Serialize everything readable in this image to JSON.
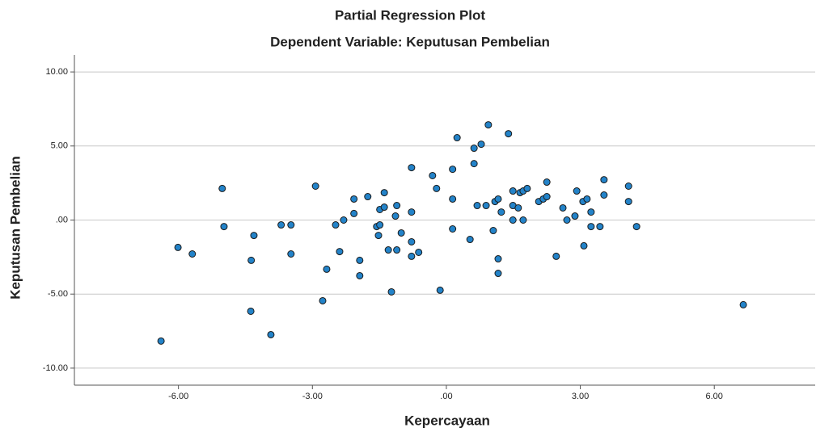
{
  "chart_data": {
    "type": "scatter",
    "title": "Partial Regression Plot",
    "subtitle": "Dependent Variable: Keputusan Pembelian",
    "x_label": "Kepercayaan",
    "y_label": "Keputusan Pembelian",
    "x": [
      -6.39,
      -6.01,
      -5.69,
      -5.02,
      -4.98,
      -4.38,
      -4.37,
      -4.31,
      -3.93,
      -3.7,
      -3.48,
      -3.48,
      -2.93,
      -2.77,
      -2.68,
      -2.48,
      -2.39,
      -2.3,
      -2.07,
      -2.07,
      -1.94,
      -1.94,
      -1.76,
      -1.56,
      -1.52,
      -1.49,
      -1.49,
      -1.39,
      -1.39,
      -1.3,
      -1.23,
      -1.14,
      -1.11,
      -1.11,
      -1.01,
      -0.78,
      -0.78,
      -0.78,
      -0.78,
      -0.62,
      -0.31,
      -0.22,
      -0.14,
      0.14,
      0.14,
      0.14,
      0.24,
      0.53,
      0.62,
      0.62,
      0.69,
      0.78,
      0.89,
      0.94,
      1.05,
      1.09,
      1.16,
      1.16,
      1.16,
      1.23,
      1.39,
      1.49,
      1.49,
      1.49,
      1.61,
      1.65,
      1.72,
      1.72,
      1.81,
      2.07,
      2.17,
      2.25,
      2.25,
      2.46,
      2.61,
      2.7,
      2.88,
      2.92,
      3.06,
      3.08,
      3.15,
      3.24,
      3.24,
      3.44,
      3.53,
      3.53,
      4.08,
      4.08,
      4.26,
      6.65
    ],
    "values": [
      -8.17,
      -1.85,
      -2.29,
      2.13,
      -0.44,
      -6.16,
      -2.72,
      -1.04,
      -7.74,
      -0.33,
      -0.33,
      -2.29,
      2.29,
      -5.45,
      -3.32,
      -0.33,
      -2.13,
      0.0,
      0.44,
      1.42,
      -2.72,
      -3.76,
      1.58,
      -0.44,
      -1.04,
      -0.33,
      0.71,
      0.87,
      1.85,
      -2.02,
      -4.85,
      0.27,
      0.98,
      -2.02,
      -0.87,
      3.54,
      0.54,
      -1.47,
      -2.45,
      -2.18,
      3.0,
      2.13,
      -4.74,
      3.43,
      1.42,
      -0.6,
      5.56,
      -1.31,
      4.85,
      3.81,
      0.98,
      5.12,
      0.98,
      6.43,
      -0.71,
      1.25,
      1.42,
      -2.62,
      -3.6,
      0.54,
      5.83,
      1.96,
      0.98,
      0.0,
      0.82,
      1.85,
      1.96,
      0.0,
      2.13,
      1.25,
      1.42,
      1.58,
      2.56,
      -2.45,
      0.82,
      0.0,
      0.27,
      1.96,
      1.25,
      -1.74,
      1.42,
      0.54,
      -0.44,
      -0.44,
      2.72,
      1.69,
      2.29,
      1.25,
      -0.44,
      -5.72
    ],
    "color": "#2383c9",
    "edge_color": "#1a1a1a",
    "xlim": [
      -8.33,
      8.26
    ],
    "xticks": [
      {
        "value": -6,
        "label": "-6.00"
      },
      {
        "value": -3,
        "label": "-3.00"
      },
      {
        "value": 0,
        "label": ".00"
      },
      {
        "value": 3,
        "label": "3.00"
      },
      {
        "value": 6,
        "label": "6.00"
      }
    ],
    "ylim": [
      -11.15,
      11.15
    ],
    "yticks": [
      {
        "value": 10,
        "label": "10.00"
      },
      {
        "value": 5,
        "label": "5.00"
      },
      {
        "value": 0,
        "label": ".00"
      },
      {
        "value": -5,
        "label": "-5.00"
      },
      {
        "value": -10,
        "label": "-10.00"
      }
    ],
    "grid": true
  }
}
